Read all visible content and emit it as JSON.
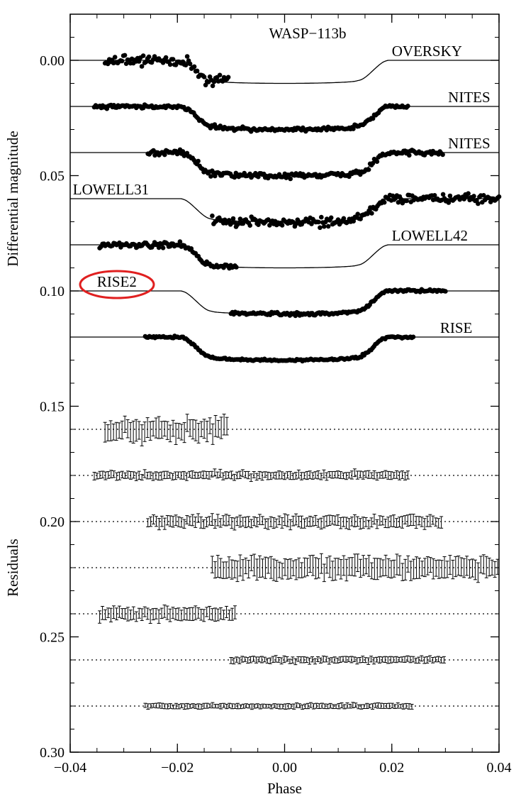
{
  "chart_data": {
    "type": "scatter",
    "title": "WASP−113b",
    "xlabel": "Phase",
    "ylabel_top": "Differential magnitude",
    "ylabel_bottom": "Residuals",
    "xlim": [
      -0.04,
      0.04
    ],
    "ylim": [
      0.3,
      -0.02
    ],
    "y_inverted": true,
    "x_ticks": [
      -0.04,
      -0.02,
      0.0,
      0.02,
      0.04
    ],
    "x_tick_labels": [
      "−0.04",
      "−0.02",
      "0.00",
      "0.02",
      "0.04"
    ],
    "y_ticks": [
      0.0,
      0.05,
      0.1,
      0.15,
      0.2,
      0.25,
      0.3
    ],
    "y_tick_labels": [
      "0.00",
      "0.05",
      "0.10",
      "0.15",
      "0.20",
      "0.25",
      "0.30"
    ],
    "grid": false,
    "transit": {
      "t1": -0.0195,
      "t2": -0.0135,
      "t3": 0.0135,
      "t4": 0.0195,
      "depth": 0.01
    },
    "highlight": {
      "label": "RISE2",
      "color": "#e02020"
    },
    "series": [
      {
        "name": "OVERSKY",
        "offset": 0.0,
        "x_range": [
          -0.0335,
          -0.0105
        ],
        "label_at": [
          0.02,
          0.0
        ],
        "label_side": "above",
        "residual_offset": 0.16,
        "residual_scatter": 0.0025,
        "errorbar": 0.004
      },
      {
        "name": "NITES",
        "offset": 0.02,
        "x_range": [
          -0.0355,
          0.023
        ],
        "label_at": [
          0.0305,
          0.02
        ],
        "label_side": "above",
        "residual_offset": 0.18,
        "residual_scatter": 0.0008,
        "errorbar": 0.0015
      },
      {
        "name": "NITES",
        "offset": 0.04,
        "x_range": [
          -0.0255,
          0.0295
        ],
        "label_at": [
          0.0305,
          0.04
        ],
        "label_side": "above",
        "residual_offset": 0.2,
        "residual_scatter": 0.0012,
        "errorbar": 0.0022
      },
      {
        "name": "LOWELL31",
        "offset": 0.06,
        "x_range": [
          -0.0135,
          0.04
        ],
        "label_at": [
          -0.0395,
          0.06
        ],
        "label_side": "above",
        "residual_offset": 0.22,
        "residual_scatter": 0.002,
        "errorbar": 0.004
      },
      {
        "name": "LOWELL42",
        "offset": 0.08,
        "x_range": [
          -0.0345,
          -0.009
        ],
        "label_at": [
          0.02,
          0.08
        ],
        "label_side": "above",
        "residual_offset": 0.24,
        "residual_scatter": 0.0012,
        "errorbar": 0.0025
      },
      {
        "name": "RISE2",
        "offset": 0.1,
        "x_range": [
          -0.01,
          0.03
        ],
        "label_at": [
          -0.035,
          0.1
        ],
        "label_side": "above",
        "residual_offset": 0.26,
        "residual_scatter": 0.0006,
        "errorbar": 0.0012
      },
      {
        "name": "RISE",
        "offset": 0.12,
        "x_range": [
          -0.026,
          0.024
        ],
        "label_at": [
          0.029,
          0.12
        ],
        "label_side": "above",
        "residual_offset": 0.28,
        "residual_scatter": 0.0005,
        "errorbar": 0.001
      }
    ]
  }
}
